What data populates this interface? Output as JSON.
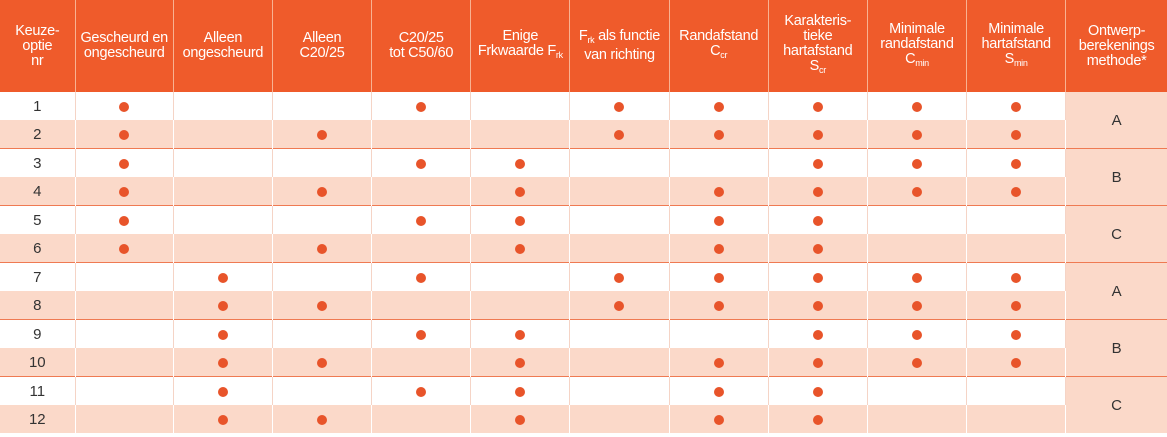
{
  "headers": {
    "c0": [
      "Keuze-",
      "optie",
      "nr"
    ],
    "c1": [
      "Gescheurd en",
      "ongescheurd"
    ],
    "c2": [
      "Alleen",
      "ongescheurd"
    ],
    "c3": [
      "Alleen",
      "C20/25"
    ],
    "c4": [
      "C20/25",
      "tot C50/60"
    ],
    "c5": {
      "l1": "Enige",
      "l2_main": "Frkwaarde F",
      "l2_sub": "rk"
    },
    "c6": {
      "l1_main": "F",
      "l1_sub": "rk",
      "l1_rest": " als functie",
      "l2": "van richting"
    },
    "c7": {
      "l1": "Randafstand",
      "l2_main": "C",
      "l2_sub": "cr"
    },
    "c8": {
      "l1": "Karakteris-",
      "l2": "tieke",
      "l3": "hartafstand",
      "l4_main": "S",
      "l4_sub": "cr"
    },
    "c9": {
      "l1": "Minimale",
      "l2": "randafstand",
      "l3_main": "C",
      "l3_sub": "min"
    },
    "c10": {
      "l1": "Minimale",
      "l2": "hartafstand",
      "l3_main": "S",
      "l3_sub": "min"
    },
    "c11": [
      "Ontwerp-",
      "berekenings",
      "methode*"
    ]
  },
  "rows": [
    {
      "nr": "1",
      "marks": [
        1,
        0,
        0,
        1,
        0,
        1,
        1,
        1,
        1,
        1
      ]
    },
    {
      "nr": "2",
      "marks": [
        1,
        0,
        1,
        0,
        0,
        1,
        1,
        1,
        1,
        1
      ]
    },
    {
      "nr": "3",
      "marks": [
        1,
        0,
        0,
        1,
        1,
        0,
        0,
        1,
        1,
        1
      ]
    },
    {
      "nr": "4",
      "marks": [
        1,
        0,
        1,
        0,
        1,
        0,
        1,
        1,
        1,
        1
      ]
    },
    {
      "nr": "5",
      "marks": [
        1,
        0,
        0,
        1,
        1,
        0,
        1,
        1,
        0,
        0
      ]
    },
    {
      "nr": "6",
      "marks": [
        1,
        0,
        1,
        0,
        1,
        0,
        1,
        1,
        0,
        0
      ]
    },
    {
      "nr": "7",
      "marks": [
        0,
        1,
        0,
        1,
        0,
        1,
        1,
        1,
        1,
        1
      ]
    },
    {
      "nr": "8",
      "marks": [
        0,
        1,
        1,
        0,
        0,
        1,
        1,
        1,
        1,
        1
      ]
    },
    {
      "nr": "9",
      "marks": [
        0,
        1,
        0,
        1,
        1,
        0,
        0,
        1,
        1,
        1
      ]
    },
    {
      "nr": "10",
      "marks": [
        0,
        1,
        1,
        0,
        1,
        0,
        1,
        1,
        1,
        1
      ]
    },
    {
      "nr": "11",
      "marks": [
        0,
        1,
        0,
        1,
        1,
        0,
        1,
        1,
        0,
        0
      ]
    },
    {
      "nr": "12",
      "marks": [
        0,
        1,
        1,
        0,
        1,
        0,
        1,
        1,
        0,
        0
      ]
    }
  ],
  "methods": [
    "A",
    "B",
    "C",
    "A",
    "B",
    "C"
  ],
  "colors": {
    "header_bg": "#ef5b2b",
    "dot": "#e8542a",
    "row_alt": "#fbd9c9"
  }
}
